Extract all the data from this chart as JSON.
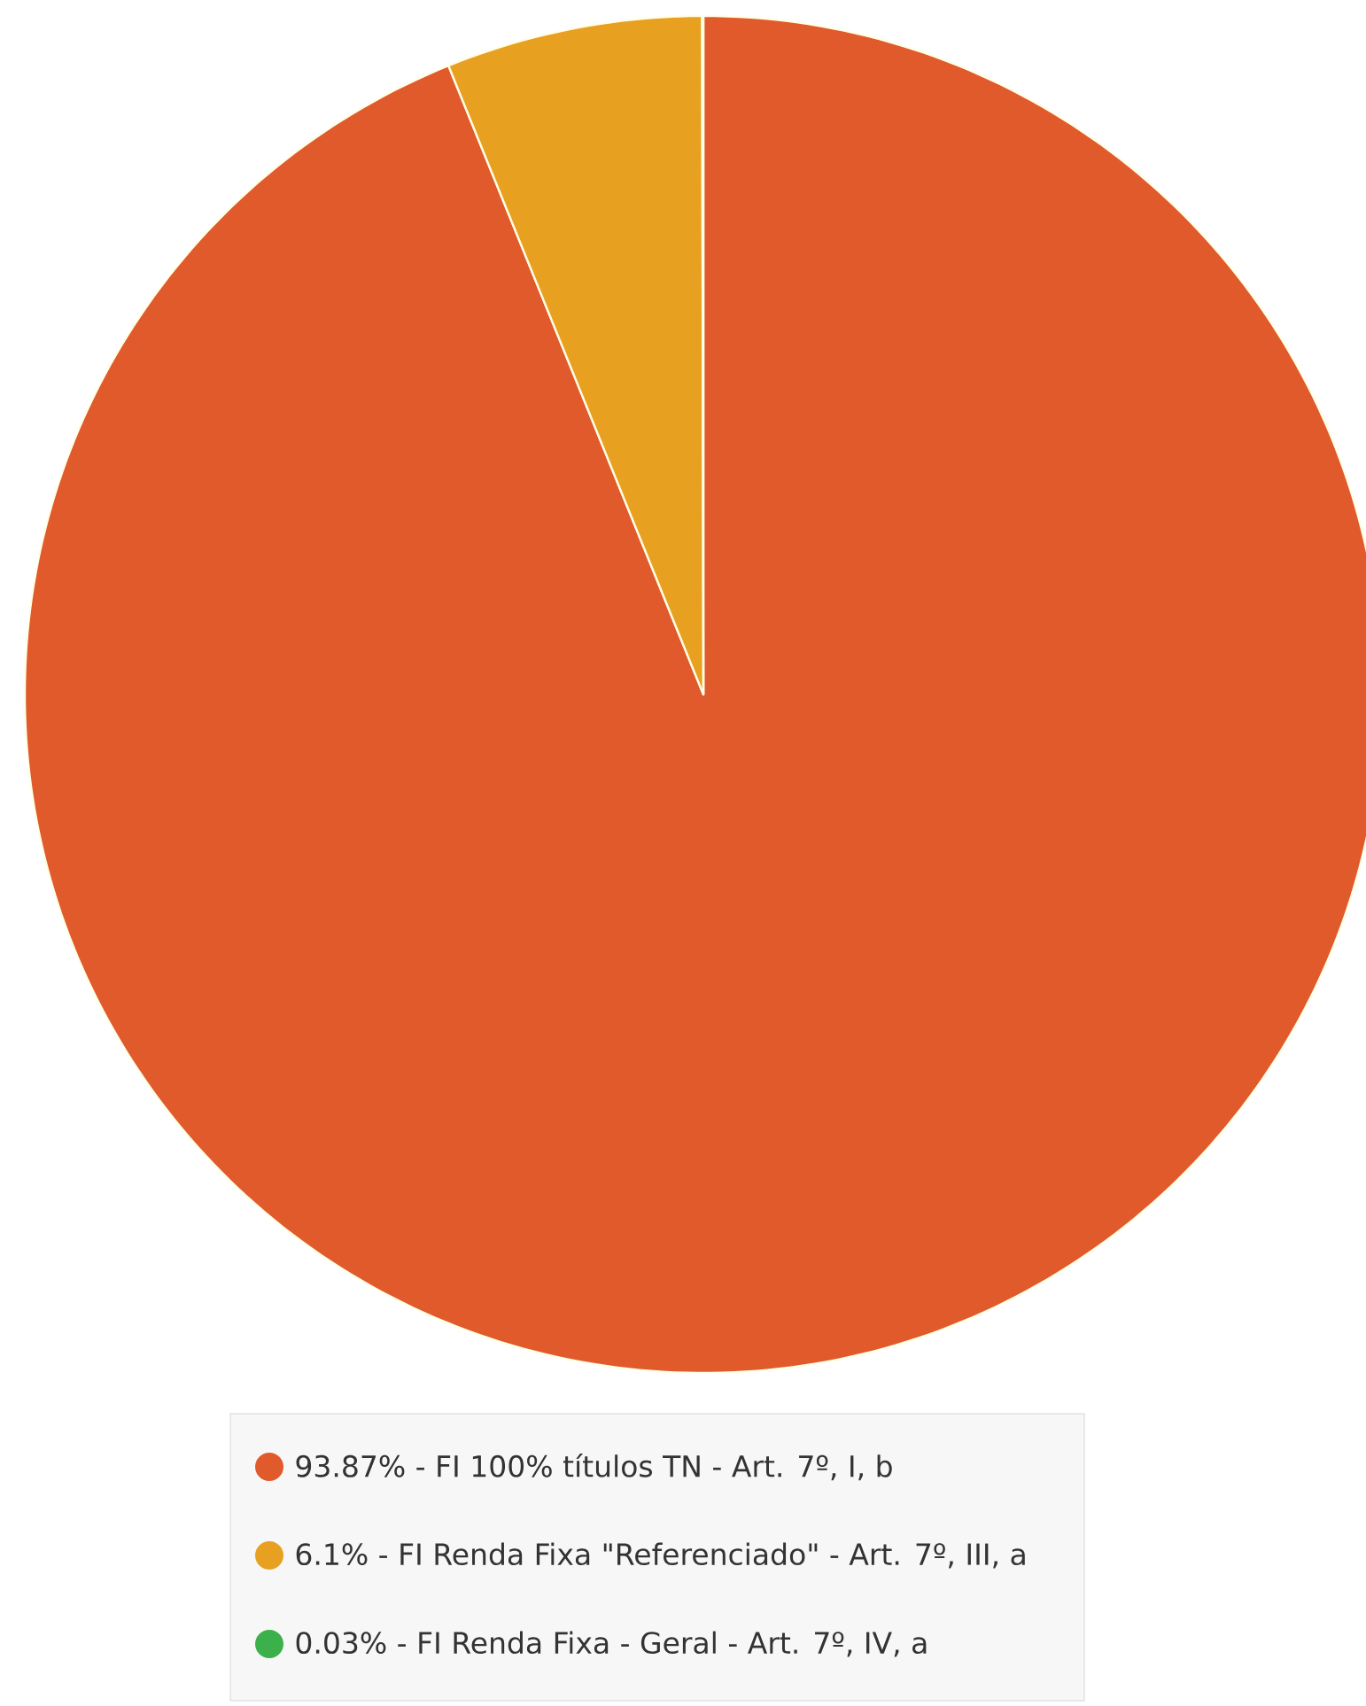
{
  "chart_data": {
    "type": "pie",
    "categories": [
      "93.87% - FI 100% títulos TN - Art. 7º, I, b",
      "6.1% - FI Renda Fixa \"Referenciado\" - Art. 7º, III, a",
      "0.03% - FI Renda Fixa - Geral - Art. 7º, IV, a"
    ],
    "values": [
      93.87,
      6.1,
      0.03
    ],
    "colors": [
      "#e05a2b",
      "#e8a020",
      "#3cb04a"
    ],
    "legend": "bottom"
  }
}
